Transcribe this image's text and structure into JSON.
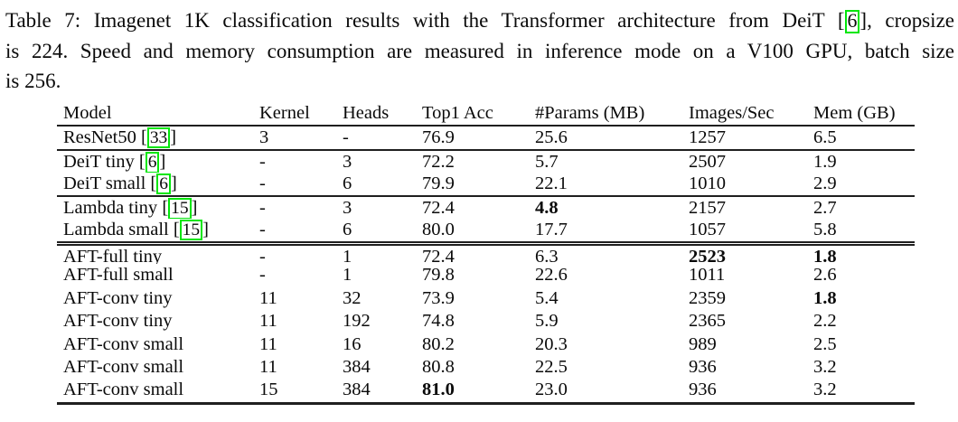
{
  "caption": {
    "line1_pre": "Table 7: Imagenet 1K classification results with the Transformer architecture from DeiT [",
    "line1_cite": "6",
    "line1_post": "], cropsize",
    "line2": "is 224. Speed and memory consumption are measured in inference mode on a V100 GPU, batch size",
    "line3": "is 256."
  },
  "table": {
    "columns": [
      "Model",
      "Kernel",
      "Heads",
      "Top1 Acc",
      "#Params (MB)",
      "Images/Sec",
      "Mem (GB)"
    ],
    "rows": [
      {
        "model": "ResNet50",
        "cite": "33",
        "rule": "none",
        "cells": [
          "3",
          "-",
          "76.9",
          "25.6",
          "1257",
          "6.5"
        ],
        "bold": []
      },
      {
        "model": "DeiT tiny",
        "cite": "6",
        "rule": "single",
        "cells": [
          "-",
          "3",
          "72.2",
          "5.7",
          "2507",
          "1.9"
        ],
        "bold": []
      },
      {
        "model": "DeiT small",
        "cite": "6",
        "rule": "none",
        "cells": [
          "-",
          "6",
          "79.9",
          "22.1",
          "1010",
          "2.9"
        ],
        "bold": []
      },
      {
        "model": "Lambda tiny",
        "cite": "15",
        "rule": "single",
        "cells": [
          "-",
          "3",
          "72.4",
          "4.8",
          "2157",
          "2.7"
        ],
        "bold": [
          3
        ]
      },
      {
        "model": "Lambda small",
        "cite": "15",
        "rule": "none",
        "cells": [
          "-",
          "6",
          "80.0",
          "17.7",
          "1057",
          "5.8"
        ],
        "bold": []
      },
      {
        "model": "AFT-full tiny",
        "cite": null,
        "rule": "double",
        "cells": [
          "-",
          "1",
          "72.4",
          "6.3",
          "2523",
          "1.8"
        ],
        "bold": [
          4,
          5
        ]
      },
      {
        "model": "AFT-full small",
        "cite": null,
        "rule": "none",
        "cells": [
          "-",
          "1",
          "79.8",
          "22.6",
          "1011",
          "2.6"
        ],
        "bold": []
      },
      {
        "model": "AFT-conv tiny",
        "cite": null,
        "rule": "none",
        "cells": [
          "11",
          "32",
          "73.9",
          "5.4",
          "2359",
          "1.8"
        ],
        "bold": [
          5
        ]
      },
      {
        "model": "AFT-conv tiny",
        "cite": null,
        "rule": "none",
        "cells": [
          "11",
          "192",
          "74.8",
          "5.9",
          "2365",
          "2.2"
        ],
        "bold": []
      },
      {
        "model": "AFT-conv small",
        "cite": null,
        "rule": "none",
        "cells": [
          "11",
          "16",
          "80.2",
          "20.3",
          "989",
          "2.5"
        ],
        "bold": []
      },
      {
        "model": "AFT-conv small",
        "cite": null,
        "rule": "none",
        "cells": [
          "11",
          "384",
          "80.8",
          "22.5",
          "936",
          "3.2"
        ],
        "bold": []
      },
      {
        "model": "AFT-conv small",
        "cite": null,
        "rule": "none",
        "cells": [
          "15",
          "384",
          "81.0",
          "23.0",
          "936",
          "3.2"
        ],
        "bold": [
          2
        ]
      }
    ]
  },
  "colors": {
    "citation_box": "#00e60a",
    "text": "#0a0a0a",
    "rule": "#1f1f1f",
    "background": "#ffffff"
  }
}
